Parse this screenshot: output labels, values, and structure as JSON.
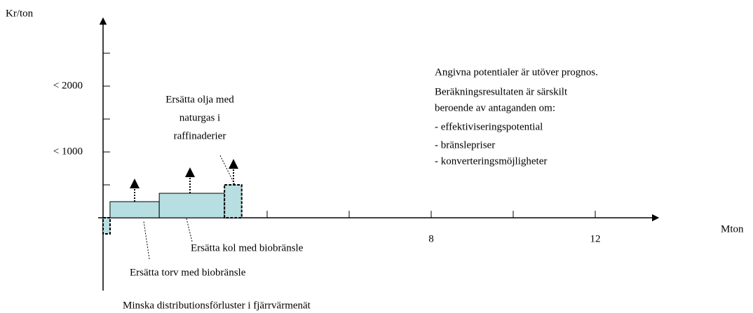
{
  "chart_data": {
    "type": "step",
    "y_label": "Kr/ton",
    "x_label": "Mton",
    "xlim": [
      0,
      13.5
    ],
    "ylim": [
      -1050,
      3000
    ],
    "xticks": [
      8,
      12
    ],
    "xtick_marks": [
      2,
      4,
      6,
      8,
      10,
      12
    ],
    "yticks": [
      {
        "value": 1000,
        "label": "< 1000"
      },
      {
        "value": 2000,
        "label": "< 2000"
      }
    ],
    "ytick_marks": [
      500,
      1000,
      1500,
      2000,
      2500
    ],
    "color": "#b7dfe1",
    "blocks": [
      {
        "name": "Minska distributionsförluster i fjärrvärmenät",
        "x0": 0,
        "x1": 0.17,
        "value": -245,
        "dashed": true
      },
      {
        "name": "Ersätta torv med biobränsle",
        "x0": 0.17,
        "x1": 1.37,
        "value": 245,
        "dashed": false
      },
      {
        "name": "Ersätta kol med biobränsle",
        "x0": 1.37,
        "x1": 2.96,
        "value": 372,
        "dashed": false
      },
      {
        "name": [
          "Ersätta olja med",
          "naturgas i",
          "raffinaderier"
        ],
        "x0": 2.96,
        "x1": 3.38,
        "value": 500,
        "dashed": true
      }
    ],
    "note": [
      "Angivna potentialer är utöver prognos.",
      "Beräkningsresultaten är särskilt",
      "beroende av antaganden om:",
      "- effektiviseringspotential",
      "- bränslepriser",
      "- konverteringsmöjligheter"
    ]
  }
}
